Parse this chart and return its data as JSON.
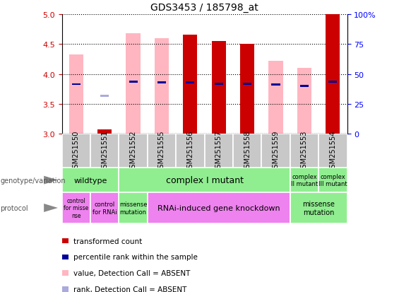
{
  "title": "GDS3453 / 185798_at",
  "samples": [
    "GSM251550",
    "GSM251551",
    "GSM251552",
    "GSM251555",
    "GSM251556",
    "GSM251557",
    "GSM251558",
    "GSM251559",
    "GSM251553",
    "GSM251554"
  ],
  "ylim": [
    3.0,
    5.0
  ],
  "yticks": [
    3.0,
    3.5,
    4.0,
    4.5,
    5.0
  ],
  "y2ticks": [
    0,
    25,
    50,
    75,
    100
  ],
  "y2labels": [
    "0",
    "25",
    "50",
    "75",
    "100%"
  ],
  "red_bars": [
    null,
    3.08,
    null,
    null,
    4.65,
    4.55,
    4.5,
    null,
    null,
    5.0
  ],
  "pink_bars": [
    4.32,
    null,
    4.68,
    4.6,
    null,
    null,
    null,
    4.22,
    4.1,
    null
  ],
  "blue_squares": [
    3.83,
    null,
    3.87,
    3.86,
    3.86,
    3.84,
    3.84,
    3.82,
    3.8,
    3.87
  ],
  "light_blue_squares": [
    null,
    3.63,
    null,
    null,
    null,
    null,
    null,
    null,
    null,
    null
  ],
  "bar_width": 0.5,
  "genotype_groups": [
    {
      "label": "wildtype",
      "start": 0,
      "end": 2,
      "color": "#90EE90",
      "fontsize": 8
    },
    {
      "label": "complex I mutant",
      "start": 2,
      "end": 8,
      "color": "#90EE90",
      "fontsize": 9
    },
    {
      "label": "complex\nII mutant",
      "start": 8,
      "end": 9,
      "color": "#90EE90",
      "fontsize": 6
    },
    {
      "label": "complex\nIII mutant",
      "start": 9,
      "end": 10,
      "color": "#90EE90",
      "fontsize": 6
    }
  ],
  "protocol_groups": [
    {
      "label": "control\nfor misse\nnse",
      "start": 0,
      "end": 1,
      "color": "#EE82EE",
      "fontsize": 5.5
    },
    {
      "label": "control\nfor RNAi",
      "start": 1,
      "end": 2,
      "color": "#EE82EE",
      "fontsize": 6
    },
    {
      "label": "missense\nmutation",
      "start": 2,
      "end": 3,
      "color": "#90EE90",
      "fontsize": 6
    },
    {
      "label": "RNAi-induced gene knockdown",
      "start": 3,
      "end": 8,
      "color": "#EE82EE",
      "fontsize": 8
    },
    {
      "label": "missense\nmutation",
      "start": 8,
      "end": 10,
      "color": "#90EE90",
      "fontsize": 7
    }
  ],
  "legend_items": [
    {
      "color": "#CC0000",
      "label": "transformed count"
    },
    {
      "color": "#000099",
      "label": "percentile rank within the sample"
    },
    {
      "color": "#FFB6C1",
      "label": "value, Detection Call = ABSENT"
    },
    {
      "color": "#AAAADD",
      "label": "rank, Detection Call = ABSENT"
    }
  ],
  "title_fontsize": 10,
  "tick_fontsize": 7,
  "header_color": "#C8C8C8",
  "header_border": "#FFFFFF",
  "left_label_color": "#555555",
  "arrow_color": "#888888"
}
